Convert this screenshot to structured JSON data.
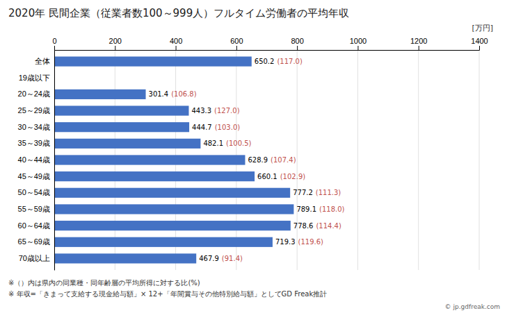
{
  "chart_data": {
    "type": "bar",
    "orientation": "horizontal",
    "title": "2020年 民間企業（従業者数100～999人）フルタイム労働者の平均年収",
    "xlabel": "[万円]",
    "categories": [
      "全体",
      "19歳以下",
      "20～24歳",
      "25～29歳",
      "30～34歳",
      "35～39歳",
      "40～44歳",
      "45～49歳",
      "50～54歳",
      "55～59歳",
      "60～64歳",
      "65～69歳",
      "70歳以上"
    ],
    "values": [
      650.2,
      0,
      301.4,
      443.3,
      444.7,
      482.1,
      628.9,
      660.1,
      777.2,
      789.1,
      778.6,
      719.3,
      467.9
    ],
    "value_labels": [
      "650.2",
      null,
      "301.4",
      "443.3",
      "444.7",
      "482.1",
      "628.9",
      "660.1",
      "777.2",
      "789.1",
      "778.6",
      "719.3",
      "467.9"
    ],
    "ratios": [
      117.0,
      null,
      106.8,
      127.0,
      103.0,
      100.5,
      107.4,
      102.9,
      111.3,
      118.0,
      114.4,
      119.6,
      91.4
    ],
    "ratio_labels": [
      "(117.0)",
      null,
      "(106.8)",
      "(127.0)",
      "(103.0)",
      "(100.5)",
      "(107.4)",
      "(102.9)",
      "(111.3)",
      "(118.0)",
      "(114.4)",
      "(119.6)",
      "(91.4)"
    ],
    "color": "#4472c4",
    "xlim": [
      0,
      1400
    ],
    "xticks": [
      0,
      200,
      400,
      600,
      800,
      1000,
      1200,
      1400
    ],
    "grid": true,
    "data_labels": true,
    "annotations": [
      "※（）内は県内の同業種・同年齢層の平均所得に対する比(%)",
      "※ 年収=「きまって支給する現金給与額」× 12+「年間賞与その他特別給与額」としてGD Freak推計",
      "© jp.gdfreak.com"
    ]
  }
}
